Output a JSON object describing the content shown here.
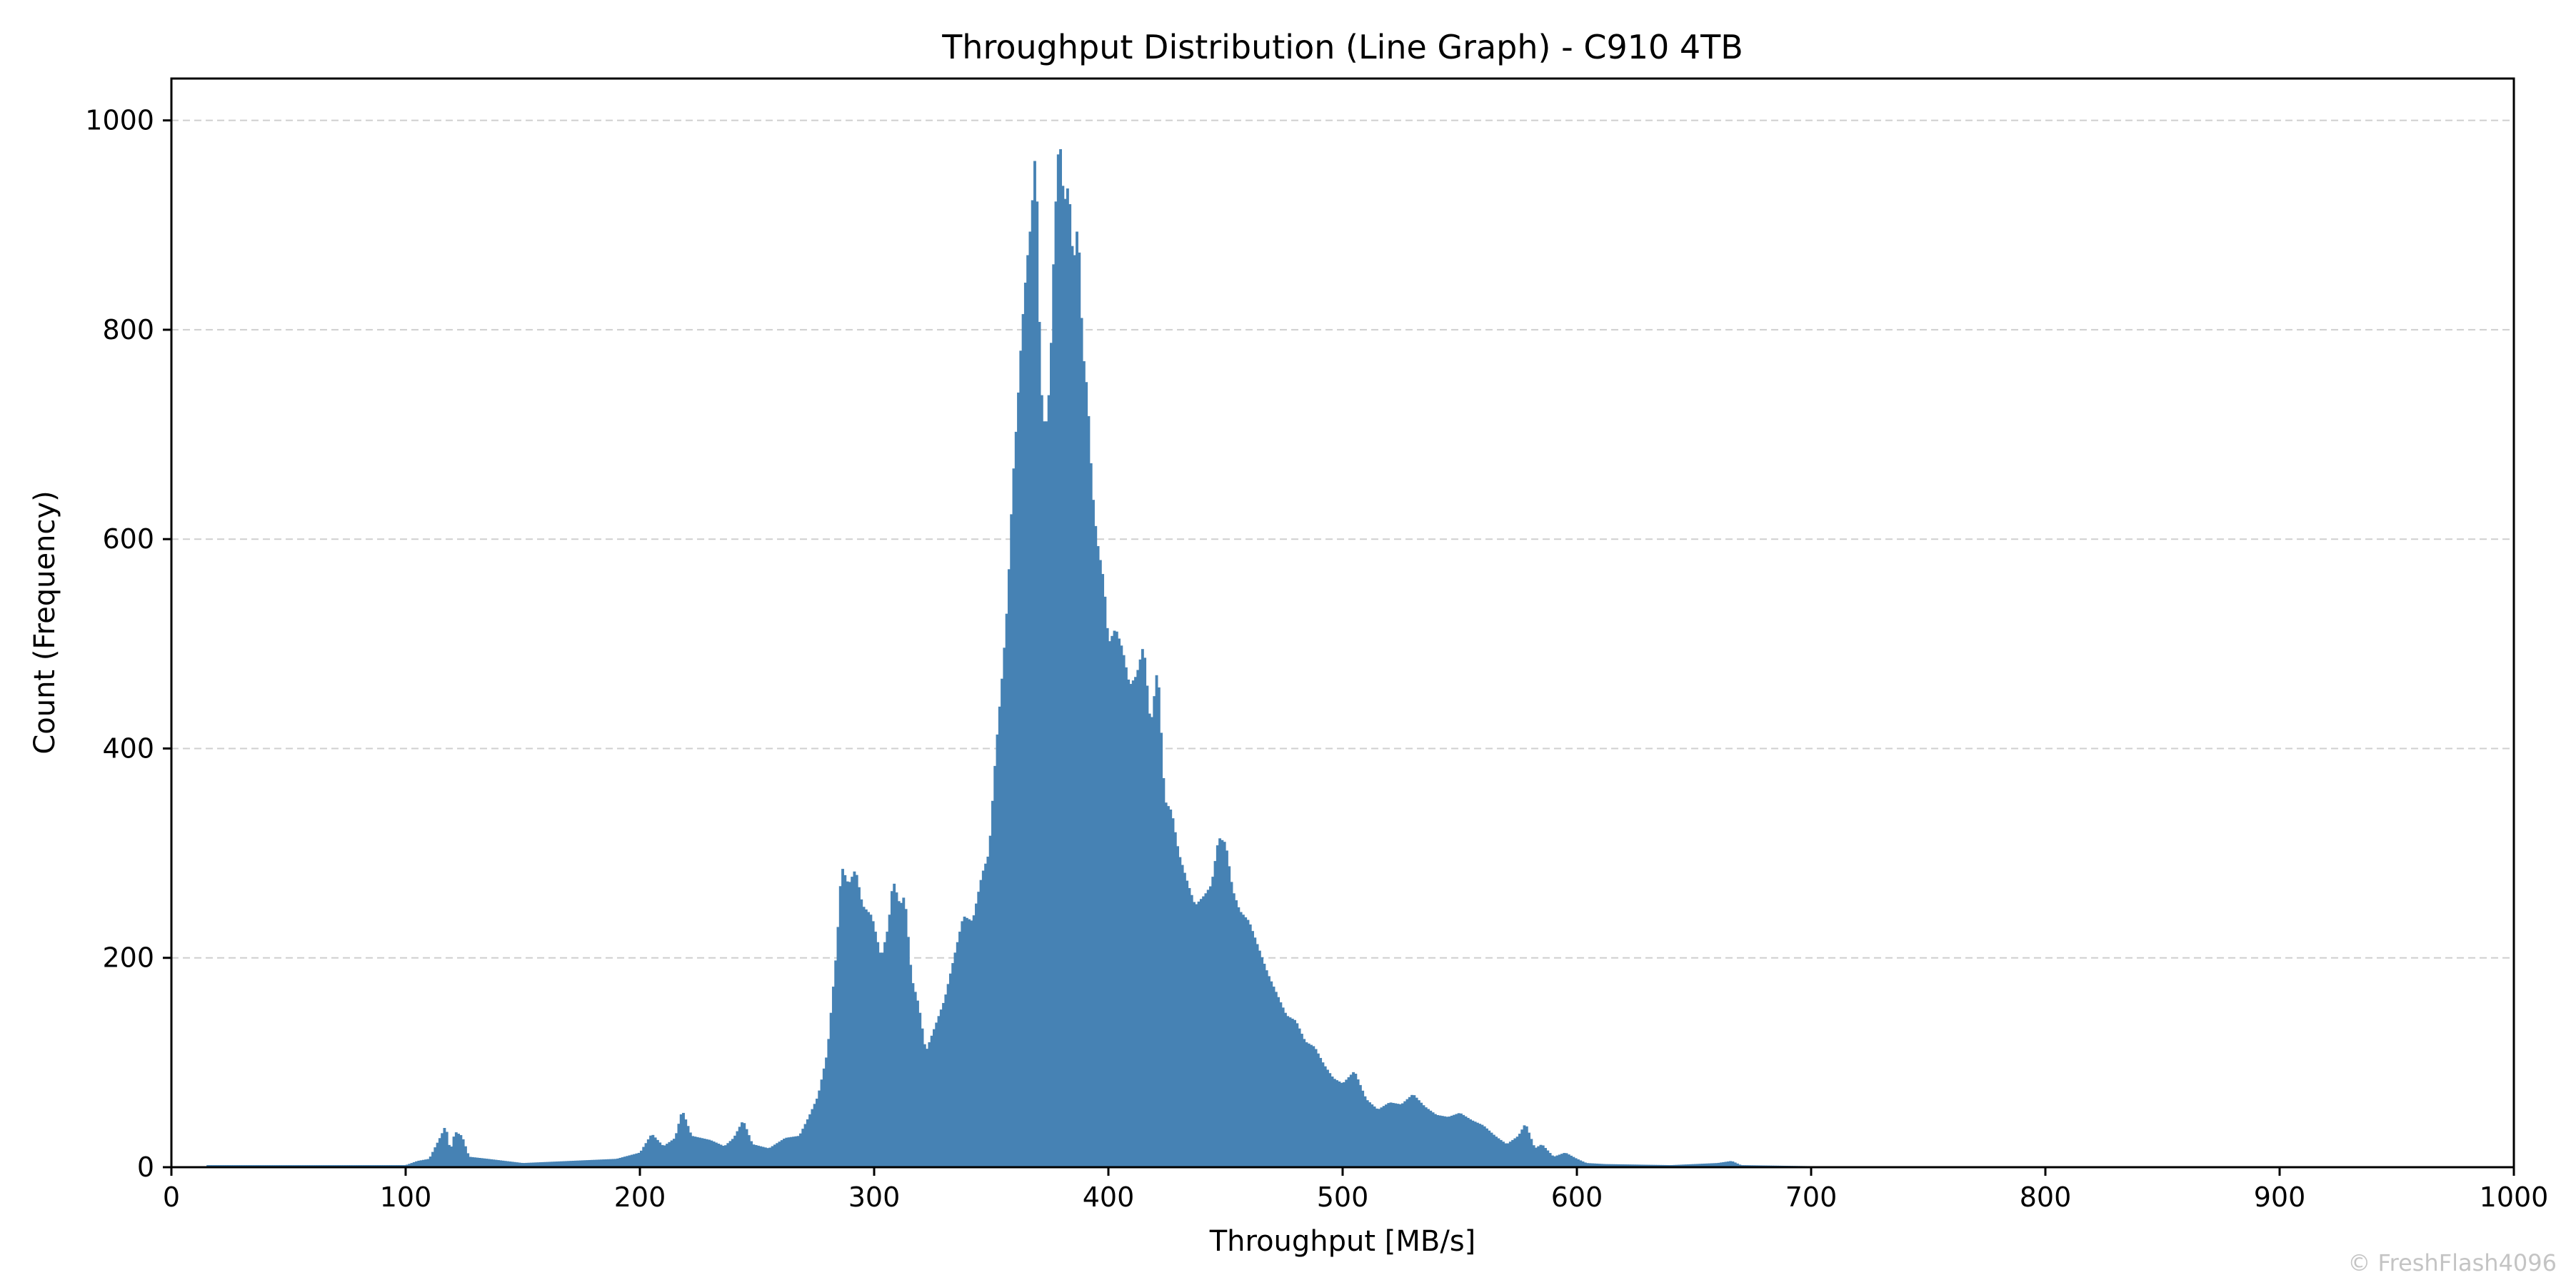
{
  "chart_data": {
    "type": "histogram",
    "title": "Throughput Distribution (Line Graph) - C910 4TB",
    "xlabel": "Throughput [MB/s]",
    "ylabel": "Count (Frequency)",
    "xlim": [
      0,
      1000
    ],
    "ylim": [
      0,
      1040
    ],
    "xticks": [
      0,
      100,
      200,
      300,
      400,
      500,
      600,
      700,
      800,
      900,
      1000
    ],
    "yticks": [
      0,
      200,
      400,
      600,
      800,
      1000
    ],
    "grid": "y-dashed",
    "bar_color": "#4682b4",
    "bin_width": 1,
    "profile": [
      [
        15,
        2
      ],
      [
        100,
        2
      ],
      [
        105,
        6
      ],
      [
        110,
        8
      ],
      [
        115,
        30
      ],
      [
        117,
        40
      ],
      [
        119,
        15
      ],
      [
        121,
        34
      ],
      [
        124,
        30
      ],
      [
        127,
        10
      ],
      [
        135,
        8
      ],
      [
        150,
        4
      ],
      [
        170,
        6
      ],
      [
        190,
        8
      ],
      [
        200,
        14
      ],
      [
        205,
        32
      ],
      [
        210,
        20
      ],
      [
        215,
        28
      ],
      [
        218,
        55
      ],
      [
        222,
        30
      ],
      [
        230,
        26
      ],
      [
        236,
        20
      ],
      [
        240,
        28
      ],
      [
        244,
        45
      ],
      [
        248,
        22
      ],
      [
        255,
        18
      ],
      [
        262,
        28
      ],
      [
        268,
        30
      ],
      [
        272,
        48
      ],
      [
        276,
        68
      ],
      [
        280,
        110
      ],
      [
        284,
        210
      ],
      [
        286,
        288
      ],
      [
        289,
        270
      ],
      [
        292,
        285
      ],
      [
        295,
        250
      ],
      [
        299,
        240
      ],
      [
        303,
        200
      ],
      [
        306,
        230
      ],
      [
        308,
        275
      ],
      [
        311,
        250
      ],
      [
        313,
        260
      ],
      [
        316,
        180
      ],
      [
        319,
        155
      ],
      [
        322,
        110
      ],
      [
        326,
        135
      ],
      [
        330,
        160
      ],
      [
        334,
        200
      ],
      [
        338,
        240
      ],
      [
        342,
        235
      ],
      [
        346,
        280
      ],
      [
        349,
        300
      ],
      [
        352,
        400
      ],
      [
        355,
        480
      ],
      [
        357,
        545
      ],
      [
        359,
        650
      ],
      [
        361,
        720
      ],
      [
        363,
        800
      ],
      [
        365,
        860
      ],
      [
        367,
        905
      ],
      [
        369,
        980
      ],
      [
        371,
        750
      ],
      [
        373,
        700
      ],
      [
        375,
        750
      ],
      [
        377,
        900
      ],
      [
        379,
        990
      ],
      [
        381,
        920
      ],
      [
        383,
        940
      ],
      [
        385,
        860
      ],
      [
        387,
        905
      ],
      [
        389,
        780
      ],
      [
        391,
        740
      ],
      [
        393,
        650
      ],
      [
        395,
        600
      ],
      [
        398,
        560
      ],
      [
        400,
        500
      ],
      [
        403,
        515
      ],
      [
        406,
        495
      ],
      [
        409,
        460
      ],
      [
        412,
        470
      ],
      [
        415,
        500
      ],
      [
        418,
        420
      ],
      [
        421,
        480
      ],
      [
        424,
        350
      ],
      [
        427,
        340
      ],
      [
        430,
        300
      ],
      [
        434,
        270
      ],
      [
        437,
        250
      ],
      [
        441,
        260
      ],
      [
        444,
        270
      ],
      [
        447,
        315
      ],
      [
        450,
        310
      ],
      [
        453,
        265
      ],
      [
        456,
        245
      ],
      [
        460,
        235
      ],
      [
        464,
        210
      ],
      [
        468,
        185
      ],
      [
        472,
        165
      ],
      [
        476,
        145
      ],
      [
        480,
        140
      ],
      [
        484,
        120
      ],
      [
        488,
        115
      ],
      [
        492,
        98
      ],
      [
        496,
        85
      ],
      [
        500,
        80
      ],
      [
        505,
        92
      ],
      [
        510,
        65
      ],
      [
        515,
        55
      ],
      [
        520,
        62
      ],
      [
        525,
        60
      ],
      [
        530,
        70
      ],
      [
        535,
        58
      ],
      [
        540,
        50
      ],
      [
        545,
        48
      ],
      [
        550,
        52
      ],
      [
        555,
        45
      ],
      [
        560,
        40
      ],
      [
        565,
        30
      ],
      [
        570,
        22
      ],
      [
        575,
        30
      ],
      [
        578,
        42
      ],
      [
        582,
        18
      ],
      [
        585,
        22
      ],
      [
        590,
        10
      ],
      [
        595,
        14
      ],
      [
        600,
        8
      ],
      [
        604,
        4
      ],
      [
        612,
        3
      ],
      [
        640,
        2
      ],
      [
        660,
        4
      ],
      [
        666,
        6
      ],
      [
        670,
        2
      ],
      [
        700,
        1
      ],
      [
        1000,
        1
      ]
    ],
    "watermark": "© FreshFlash4096"
  }
}
